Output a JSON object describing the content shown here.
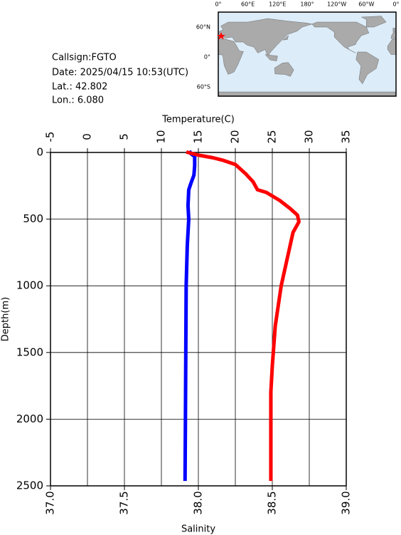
{
  "station": {
    "callsign": "Callsign:FGTO",
    "date": "Date:  2025/04/15 10:53(UTC)",
    "lat": "Lat.:  42.802",
    "lon": "Lon.:    6.080"
  },
  "map": {
    "lon_labels": [
      "0°",
      "60°E",
      "120°E",
      "180°",
      "120°W",
      "60°W",
      "0°"
    ],
    "lat_labels": [
      "60°N",
      "0°",
      "60°S"
    ]
  },
  "chart_data": {
    "type": "line",
    "xlabel": "Salinity",
    "x2label": "Temperature(C)",
    "ylabel": "Depth(m)",
    "xlim": [
      37.0,
      39.0
    ],
    "xticks": [
      {
        "value": 37.0,
        "label": "37.0"
      },
      {
        "value": 37.5,
        "label": "37.5"
      },
      {
        "value": 38.0,
        "label": "38.0"
      },
      {
        "value": 38.5,
        "label": "38.5"
      },
      {
        "value": 39.0,
        "label": "39.0"
      }
    ],
    "x2lim": [
      -5,
      35
    ],
    "x2ticks": [
      -5,
      0,
      5,
      10,
      15,
      20,
      25,
      30,
      35
    ],
    "ylim": [
      0,
      2500
    ],
    "yticks": [
      0,
      500,
      1000,
      1500,
      2000,
      2500
    ],
    "y_inverted": true,
    "grid": true,
    "series": [
      {
        "color": "#0000ff",
        "axis": "x2",
        "depth": [
          0,
          10,
          30,
          100,
          170,
          230,
          280,
          400,
          500,
          700,
          1000,
          1500,
          2000,
          2450
        ],
        "values": [
          13.9,
          14.0,
          14.5,
          14.5,
          14.4,
          14.0,
          13.7,
          13.6,
          13.7,
          13.5,
          13.35,
          13.3,
          13.25,
          13.2
        ]
      },
      {
        "color": "#ff0000",
        "axis": "x",
        "depth": [
          0,
          20,
          40,
          60,
          90,
          160,
          220,
          280,
          300,
          360,
          420,
          470,
          520,
          600,
          800,
          1000,
          1300,
          1600,
          1800,
          2000,
          2450
        ],
        "values": [
          37.93,
          38.0,
          38.1,
          38.17,
          38.25,
          38.32,
          38.37,
          38.4,
          38.46,
          38.55,
          38.62,
          38.67,
          38.68,
          38.64,
          38.6,
          38.56,
          38.52,
          38.5,
          38.49,
          38.49,
          38.49
        ]
      }
    ]
  }
}
